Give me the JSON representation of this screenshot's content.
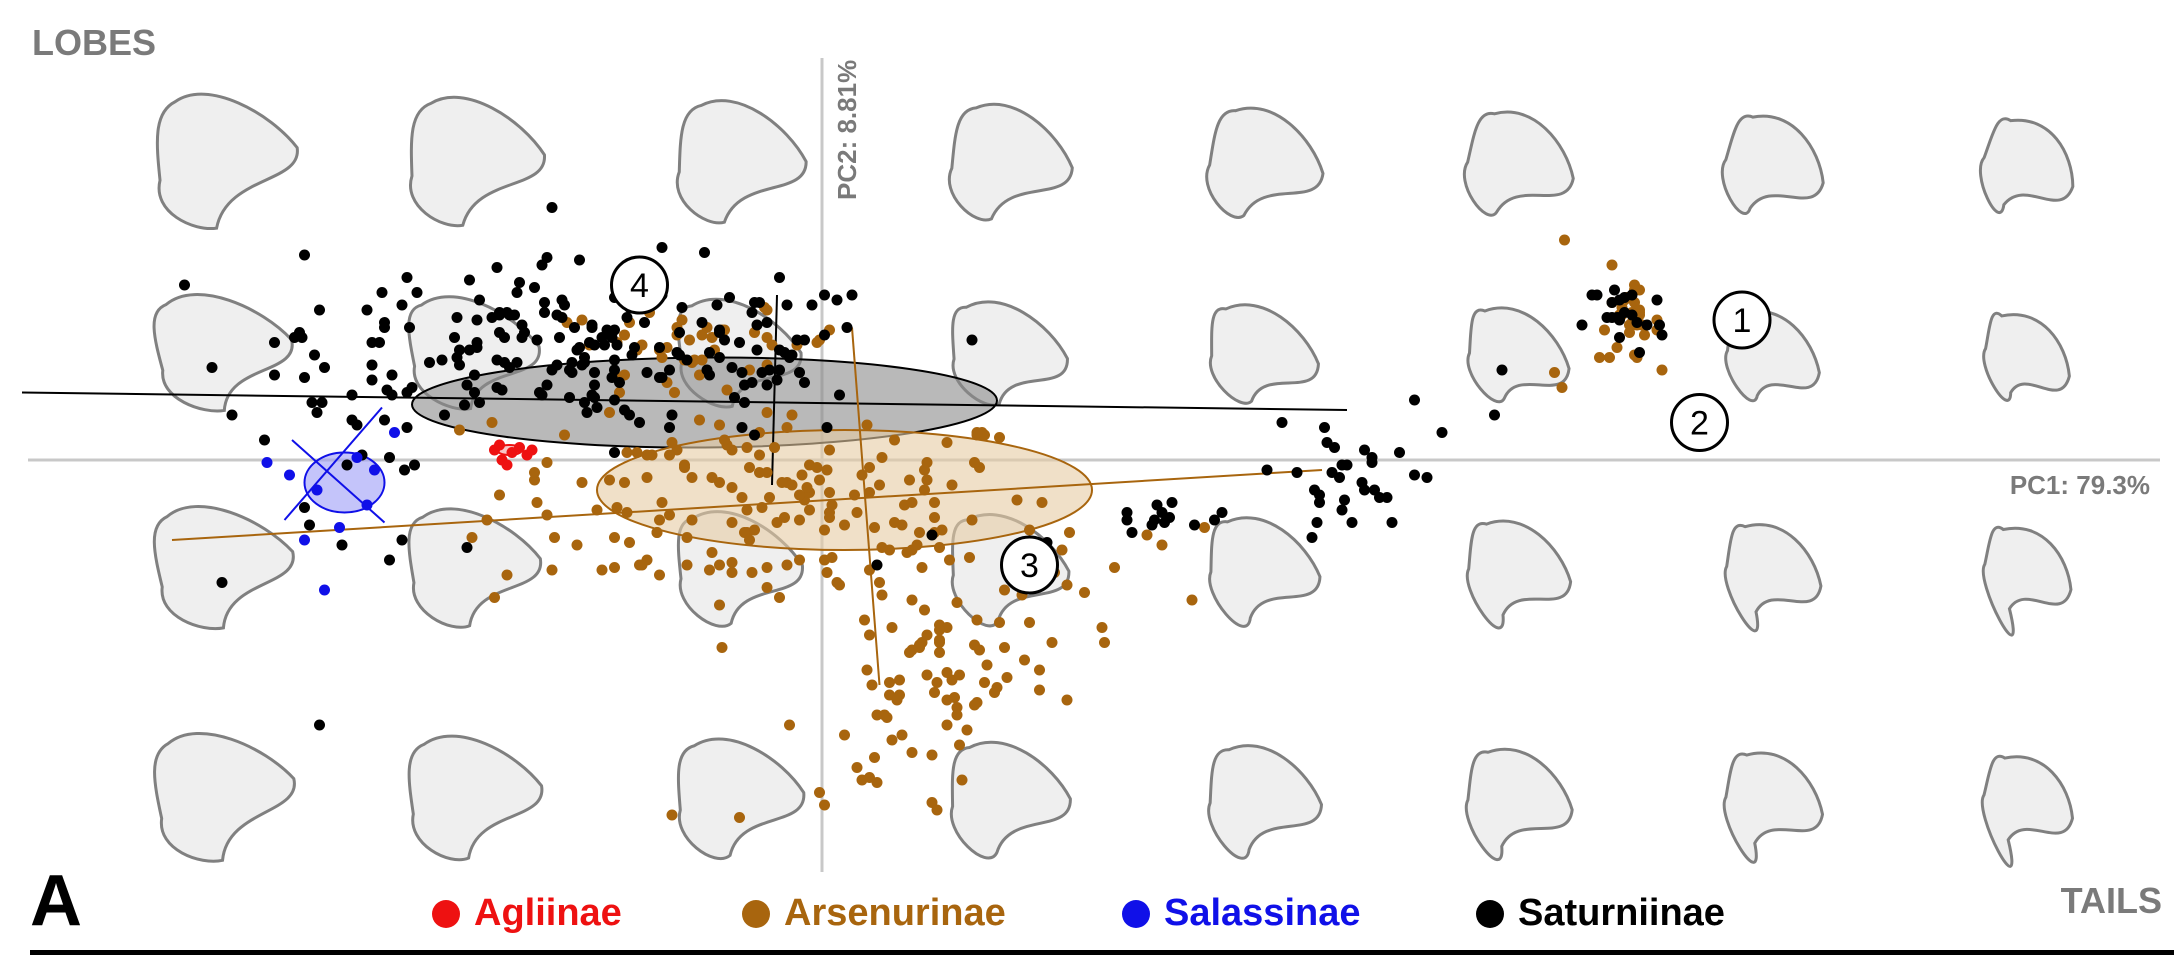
{
  "labels": {
    "lobes": "LOBES",
    "tails": "TAILS",
    "panel": "A",
    "pc1": "PC1: 79.3%",
    "pc2": "PC2: 8.81%"
  },
  "chart_data": {
    "type": "scatter",
    "title": "",
    "xlabel": "PC1: 79.3%",
    "ylabel": "PC2: 8.81%",
    "xlim": [
      -0.3,
      0.5
    ],
    "ylim": [
      -0.16,
      0.16
    ],
    "grid": false,
    "legend_position": "bottom",
    "annotations": [
      "1",
      "2",
      "3",
      "4"
    ],
    "series": [
      {
        "name": "Agliinae",
        "color": "#ee1111",
        "points": [
          [
            -0.131,
            0.004
          ],
          [
            -0.128,
            0.0
          ],
          [
            -0.124,
            0.003
          ],
          [
            -0.121,
            0.005
          ],
          [
            -0.118,
            0.002
          ],
          [
            -0.126,
            -0.002
          ],
          [
            -0.116,
            0.004
          ],
          [
            -0.129,
            0.006
          ]
        ]
      },
      {
        "name": "Arsenurinae",
        "color": "#a8650e",
        "points": []
      },
      {
        "name": "Salassinae",
        "color": "#1010e8",
        "points": [
          [
            -0.222,
            -0.001
          ],
          [
            -0.213,
            -0.006
          ],
          [
            -0.202,
            -0.012
          ],
          [
            -0.182,
            -0.018
          ],
          [
            -0.193,
            -0.027
          ],
          [
            -0.207,
            -0.032
          ],
          [
            -0.199,
            -0.052
          ],
          [
            -0.171,
            0.011
          ],
          [
            -0.186,
            0.001
          ],
          [
            -0.179,
            -0.004
          ]
        ]
      },
      {
        "name": "Saturniinae",
        "color": "#000000",
        "points": []
      }
    ],
    "ellipses": [
      {
        "series": "Saturniinae",
        "cx": -0.047,
        "cy": 0.023,
        "rx": 0.117,
        "ry": 0.018,
        "angle": -0.4
      },
      {
        "series": "Arsenurinae",
        "cx": 0.009,
        "cy": -0.012,
        "rx": 0.099,
        "ry": 0.024,
        "angle": 0.0
      },
      {
        "series": "Salassinae",
        "cx": -0.191,
        "cy": -0.009,
        "rx": 0.016,
        "ry": 0.012,
        "angle": 0.0
      },
      {
        "series": "Agliinae",
        "cx": -0.125,
        "cy": 0.004,
        "rx": 0.005,
        "ry": 0.002,
        "angle": 0.0
      }
    ]
  }
}
